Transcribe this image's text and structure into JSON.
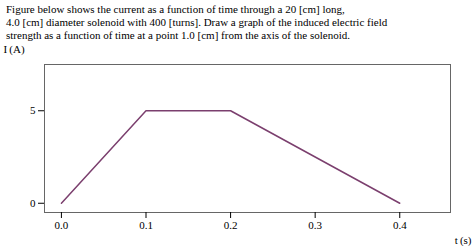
{
  "chart_data": {
    "type": "line",
    "annotations": [
      "Figure below shows the current as a function of time through a 20 [cm] long,",
      "4.0 [cm] diameter solenoid with 400 [turns]. Draw a graph of the induced electric field",
      "strength as a function of time at a point 1.0 [cm] from the axis of the solenoid."
    ],
    "xlabel": "t (s)",
    "ylabel": "I (A)",
    "x": [
      0.0,
      0.1,
      0.2,
      0.4
    ],
    "values": [
      0,
      5,
      5,
      0
    ],
    "color": "#7B3F6E",
    "xlim": [
      -0.02,
      0.46
    ],
    "ylim": [
      -0.5,
      7.5
    ],
    "xticks": [
      {
        "value": 0.0,
        "label": "0.0"
      },
      0.1,
      0.2,
      0.3,
      0.4
    ],
    "yticks": [
      0,
      5
    ],
    "grid": false
  }
}
